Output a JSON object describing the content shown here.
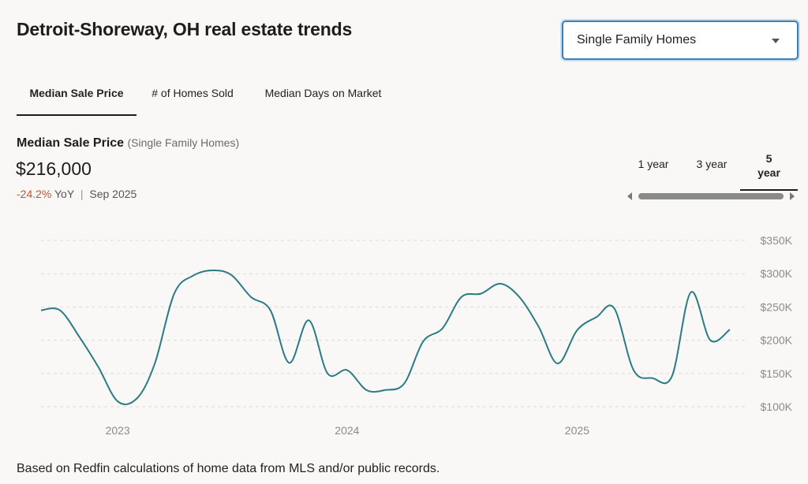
{
  "header": {
    "title": "Detroit-Shoreway, OH real estate trends",
    "property_select": {
      "value": "Single Family Homes"
    }
  },
  "tabs": [
    {
      "label": "Median Sale Price",
      "active": true
    },
    {
      "label": "# of Homes Sold",
      "active": false
    },
    {
      "label": "Median Days on Market",
      "active": false
    }
  ],
  "summary": {
    "metric": "Median Sale Price",
    "subtitle": "(Single Family Homes)",
    "value": "$216,000",
    "change": "-24.2%",
    "change_suffix": "YoY",
    "separator": "|",
    "date": "Sep 2025"
  },
  "range_tabs": [
    {
      "label": "1 year",
      "active": false
    },
    {
      "label": "3 year",
      "active": false
    },
    {
      "label": "5 year",
      "active": true
    }
  ],
  "chart_data": {
    "type": "line",
    "title": "",
    "xlabel": "",
    "ylabel": "",
    "x_tick_labels": [
      "2023",
      "2024",
      "2025"
    ],
    "x_tick_dates": [
      "2023-01-01",
      "2024-01-01",
      "2025-01-01"
    ],
    "y_tick_labels": [
      "$100K",
      "$150K",
      "$200K",
      "$250K",
      "$300K",
      "$350K"
    ],
    "y_tick_values": [
      100000,
      150000,
      200000,
      250000,
      300000,
      350000
    ],
    "ylim": [
      100000,
      350000
    ],
    "xlim": [
      "2022-09-01",
      "2025-09-30"
    ],
    "grid": true,
    "line_color": "#2a7b84",
    "series": [
      {
        "x": [
          "2022-09",
          "2022-10",
          "2022-11",
          "2022-12",
          "2023-01",
          "2023-02",
          "2023-03",
          "2023-04",
          "2023-05",
          "2023-06",
          "2023-07",
          "2023-08",
          "2023-09",
          "2023-10",
          "2023-11",
          "2023-12",
          "2024-01",
          "2024-02",
          "2024-03",
          "2024-04",
          "2024-05",
          "2024-06",
          "2024-07",
          "2024-08",
          "2024-09",
          "2024-10",
          "2024-11",
          "2024-12",
          "2025-01",
          "2025-02",
          "2025-03",
          "2025-04",
          "2025-05",
          "2025-06",
          "2025-07",
          "2025-08",
          "2025-09"
        ],
        "values": [
          245000,
          245000,
          205000,
          160000,
          108000,
          113000,
          165000,
          270000,
          297000,
          305000,
          298000,
          265000,
          245000,
          166000,
          230000,
          150000,
          155000,
          125000,
          125000,
          135000,
          198000,
          218000,
          265000,
          270000,
          285000,
          265000,
          220000,
          165000,
          215000,
          235000,
          248000,
          155000,
          143000,
          146000,
          272000,
          200000,
          216000
        ]
      }
    ]
  },
  "footnote": "Based on Redfin calculations of home data from MLS and/or public records."
}
